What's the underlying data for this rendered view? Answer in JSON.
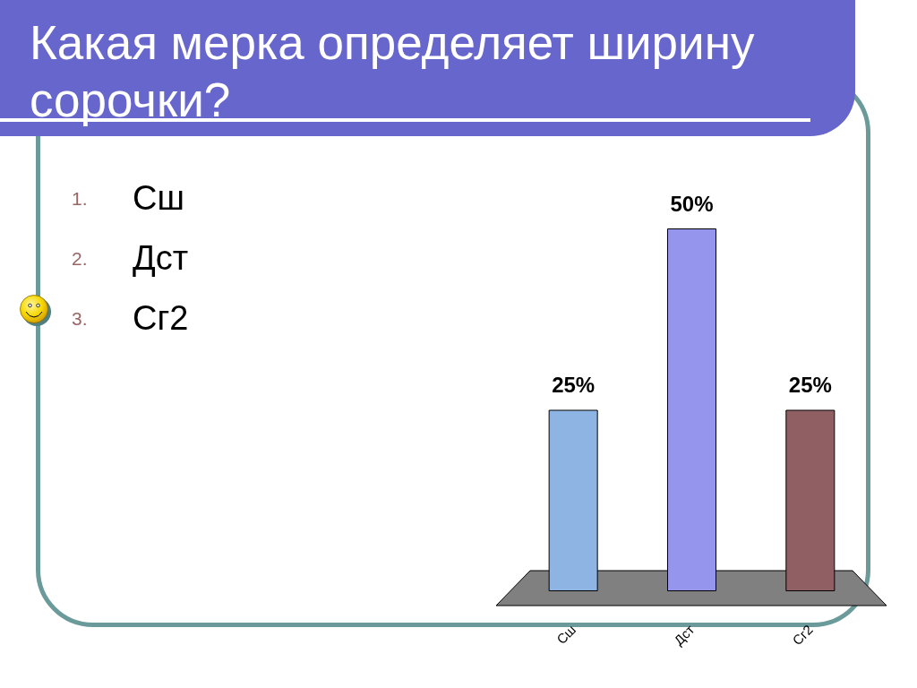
{
  "chart_data": {
    "type": "bar",
    "title": "Какая мерка определяет ширину сорочки?",
    "annotations": [
      "1. Сш",
      "2. Дст",
      "3. Сг2"
    ],
    "categories": [
      "Сш",
      "Дст",
      "Сг2"
    ],
    "values": [
      25,
      50,
      25
    ],
    "colors": [
      "#8db4e2",
      "#9595ee",
      "#8f5f63"
    ],
    "value_labels": [
      "25%",
      "50%",
      "25%"
    ],
    "tick_labels": "x"
  }
}
